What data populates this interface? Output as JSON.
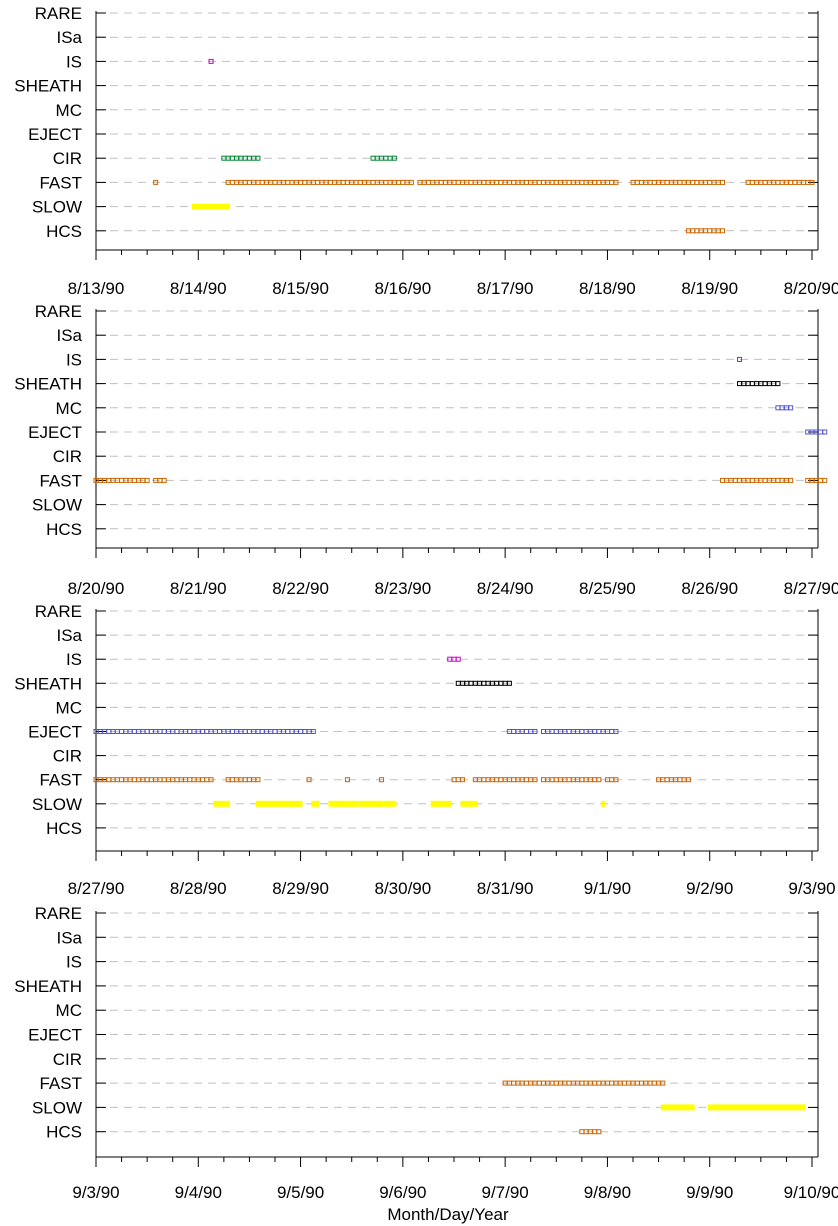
{
  "xlabel": "Month/Day/Year",
  "colors": {
    "IS": "#cc00cc",
    "SHEATH": "#000000",
    "MC": "#5555cc",
    "EJECT": "#5555cc",
    "CIR": "#008833",
    "FAST": "#cc6600",
    "SLOW": "#ffff00",
    "HCS": "#cc6600",
    "grid": "#c0c0c0"
  },
  "chart_data": [
    {
      "type": "scatter",
      "panel": 1,
      "categories": [
        "RARE",
        "ISa",
        "IS",
        "SHEATH",
        "MC",
        "EJECT",
        "CIR",
        "FAST",
        "SLOW",
        "HCS"
      ],
      "x_ticks": [
        "8/13/90",
        "8/14/90",
        "8/15/90",
        "8/16/90",
        "8/17/90",
        "8/18/90",
        "8/19/90",
        "8/20/90"
      ],
      "x_range": [
        "8/13/90",
        "8/20/90"
      ],
      "grid": true,
      "intervals": [
        {
          "category": "IS",
          "start": "8/14/90 03:00",
          "end": "8/14/90 03:00"
        },
        {
          "category": "CIR",
          "start": "8/14/90 06:00",
          "end": "8/14/90 14:00"
        },
        {
          "category": "CIR",
          "start": "8/15/90 17:00",
          "end": "8/15/90 22:00"
        },
        {
          "category": "FAST",
          "start": "8/13/90 14:00",
          "end": "8/13/90 14:00"
        },
        {
          "category": "FAST",
          "start": "8/14/90 07:00",
          "end": "8/15/90 16:00"
        },
        {
          "category": "FAST",
          "start": "8/15/90 17:00",
          "end": "8/16/90 02:00"
        },
        {
          "category": "FAST",
          "start": "8/16/90 04:00",
          "end": "8/17/90 15:00"
        },
        {
          "category": "FAST",
          "start": "8/17/90 16:00",
          "end": "8/18/90 02:00"
        },
        {
          "category": "FAST",
          "start": "8/18/90 06:00",
          "end": "8/19/90 03:00"
        },
        {
          "category": "FAST",
          "start": "8/19/90 09:00",
          "end": "8/20/90 00:00"
        },
        {
          "category": "SLOW",
          "start": "8/13/90 23:00",
          "end": "8/14/90 07:00"
        },
        {
          "category": "HCS",
          "start": "8/18/90 19:00",
          "end": "8/19/90 03:00"
        }
      ]
    },
    {
      "type": "scatter",
      "panel": 2,
      "categories": [
        "RARE",
        "ISa",
        "IS",
        "SHEATH",
        "MC",
        "EJECT",
        "CIR",
        "FAST",
        "SLOW",
        "HCS"
      ],
      "x_ticks": [
        "8/20/90",
        "8/21/90",
        "8/22/90",
        "8/23/90",
        "8/24/90",
        "8/25/90",
        "8/26/90",
        "8/27/90"
      ],
      "x_range": [
        "8/20/90",
        "8/27/90"
      ],
      "grid": true,
      "intervals": [
        {
          "category": "IS",
          "start": "8/26/90 07:00",
          "end": "8/26/90 07:00"
        },
        {
          "category": "SHEATH",
          "start": "8/26/90 07:00",
          "end": "8/26/90 16:00"
        },
        {
          "category": "MC",
          "start": "8/26/90 16:00",
          "end": "8/26/90 19:00"
        },
        {
          "category": "EJECT",
          "start": "8/26/90 23:00",
          "end": "8/27/90 03:00"
        },
        {
          "category": "FAST",
          "start": "8/20/90 00:00",
          "end": "8/20/90 12:00"
        },
        {
          "category": "FAST",
          "start": "8/20/90 14:00",
          "end": "8/20/90 16:00"
        },
        {
          "category": "FAST",
          "start": "8/26/90 03:00",
          "end": "8/26/90 19:00"
        },
        {
          "category": "FAST",
          "start": "8/26/90 23:00",
          "end": "8/27/90 03:00"
        }
      ]
    },
    {
      "type": "scatter",
      "panel": 3,
      "categories": [
        "RARE",
        "ISa",
        "IS",
        "SHEATH",
        "MC",
        "EJECT",
        "CIR",
        "FAST",
        "SLOW",
        "HCS"
      ],
      "x_ticks": [
        "8/27/90",
        "8/28/90",
        "8/29/90",
        "8/30/90",
        "8/31/90",
        "9/1/90",
        "9/2/90",
        "9/3/90"
      ],
      "x_range": [
        "8/27/90",
        "9/3/90"
      ],
      "grid": true,
      "intervals": [
        {
          "category": "IS",
          "start": "8/30/90 11:00",
          "end": "8/30/90 13:00"
        },
        {
          "category": "SHEATH",
          "start": "8/30/90 13:00",
          "end": "8/31/90 01:00"
        },
        {
          "category": "EJECT",
          "start": "8/27/90 00:00",
          "end": "8/29/90 03:00"
        },
        {
          "category": "EJECT",
          "start": "8/31/90 01:00",
          "end": "8/31/90 07:00"
        },
        {
          "category": "EJECT",
          "start": "8/31/90 09:00",
          "end": "9/1/90 02:00"
        },
        {
          "category": "FAST",
          "start": "8/27/90 00:00",
          "end": "8/27/90 11:00"
        },
        {
          "category": "FAST",
          "start": "8/27/90 12:00",
          "end": "8/27/90 16:00"
        },
        {
          "category": "FAST",
          "start": "8/27/90 17:00",
          "end": "8/28/90 03:00"
        },
        {
          "category": "FAST",
          "start": "8/28/90 07:00",
          "end": "8/28/90 14:00"
        },
        {
          "category": "FAST",
          "start": "8/29/90 02:00",
          "end": "8/29/90 02:00"
        },
        {
          "category": "FAST",
          "start": "8/29/90 11:00",
          "end": "8/29/90 11:00"
        },
        {
          "category": "FAST",
          "start": "8/29/90 19:00",
          "end": "8/29/90 19:00"
        },
        {
          "category": "FAST",
          "start": "8/30/90 12:00",
          "end": "8/30/90 14:00"
        },
        {
          "category": "FAST",
          "start": "8/30/90 17:00",
          "end": "8/31/90 07:00"
        },
        {
          "category": "FAST",
          "start": "8/31/90 09:00",
          "end": "8/31/90 22:00"
        },
        {
          "category": "FAST",
          "start": "8/31/90 24:00",
          "end": "9/1/90 02:00"
        },
        {
          "category": "FAST",
          "start": "9/1/90 12:00",
          "end": "9/1/90 19:00"
        },
        {
          "category": "SLOW",
          "start": "8/28/90 04:00",
          "end": "8/28/90 07:00"
        },
        {
          "category": "SLOW",
          "start": "8/28/90 14:00",
          "end": "8/29/90 00:00"
        },
        {
          "category": "SLOW",
          "start": "8/29/90 03:00",
          "end": "8/29/90 04:00"
        },
        {
          "category": "SLOW",
          "start": "8/29/90 07:00",
          "end": "8/29/90 11:00"
        },
        {
          "category": "SLOW",
          "start": "8/29/90 12:00",
          "end": "8/29/90 13:00"
        },
        {
          "category": "SLOW",
          "start": "8/29/90 14:00",
          "end": "8/29/90 19:00"
        },
        {
          "category": "SLOW",
          "start": "8/29/90 20:00",
          "end": "8/29/90 22:00"
        },
        {
          "category": "SLOW",
          "start": "8/30/90 07:00",
          "end": "8/30/90 11:00"
        },
        {
          "category": "SLOW",
          "start": "8/30/90 14:00",
          "end": "8/30/90 17:00"
        },
        {
          "category": "SLOW",
          "start": "8/31/90 23:00",
          "end": "8/31/90 23:00"
        }
      ]
    },
    {
      "type": "scatter",
      "panel": 4,
      "categories": [
        "RARE",
        "ISa",
        "IS",
        "SHEATH",
        "MC",
        "EJECT",
        "CIR",
        "FAST",
        "SLOW",
        "HCS"
      ],
      "x_ticks": [
        "9/3/90",
        "9/4/90",
        "9/5/90",
        "9/6/90",
        "9/7/90",
        "9/8/90",
        "9/9/90",
        "9/10/90"
      ],
      "x_range": [
        "9/3/90",
        "9/10/90"
      ],
      "grid": true,
      "intervals": [
        {
          "category": "FAST",
          "start": "9/7/90 00:00",
          "end": "9/8/90 02:00"
        },
        {
          "category": "FAST",
          "start": "9/8/90 03:00",
          "end": "9/8/90 13:00"
        },
        {
          "category": "SLOW",
          "start": "9/8/90 13:00",
          "end": "9/8/90 20:00"
        },
        {
          "category": "SLOW",
          "start": "9/9/90 00:00",
          "end": "9/9/90 22:00"
        },
        {
          "category": "HCS",
          "start": "9/7/90 18:00",
          "end": "9/7/90 22:00"
        }
      ]
    }
  ]
}
